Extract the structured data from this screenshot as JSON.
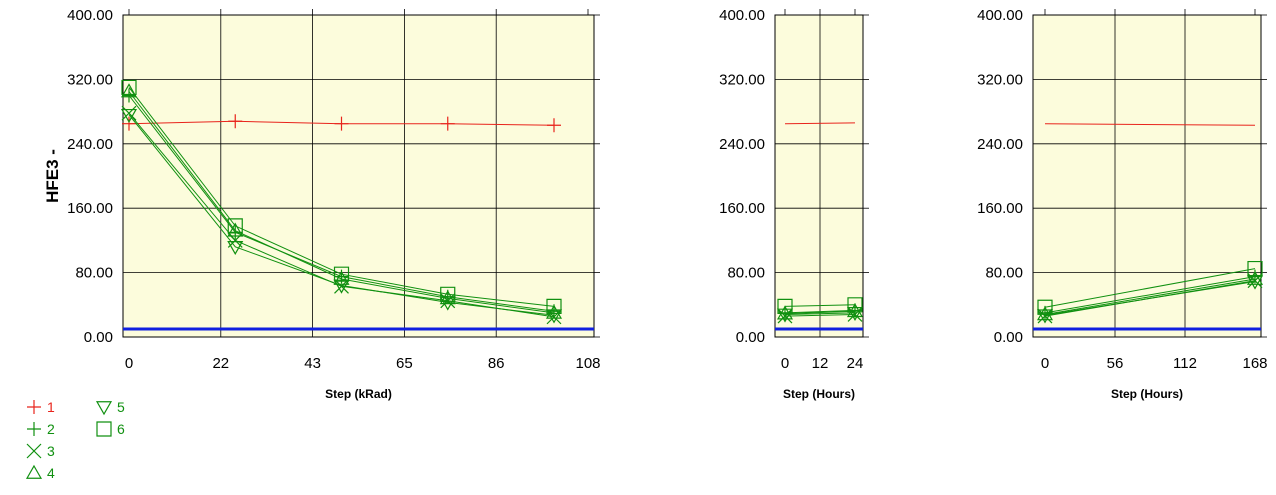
{
  "colors": {
    "plot_bg": "#fcfcdc",
    "grid": "#000000",
    "red_series": "#e8241c",
    "green_series": "#109010",
    "limit_line": "#1020e0"
  },
  "chart_data": [
    {
      "id": "panel-krad",
      "type": "line",
      "ylabel": "HFE3 -",
      "xlabel": "Step (kRad)",
      "x_ticks": [
        "0",
        "22",
        "43",
        "65",
        "86",
        "108"
      ],
      "y_ticks": [
        "0.00",
        "80.00",
        "160.00",
        "240.00",
        "320.00",
        "400.00"
      ],
      "xlim": [
        0,
        108
      ],
      "ylim": [
        0,
        400
      ],
      "grid": true,
      "limit_line": 10,
      "x": [
        0,
        25,
        50,
        75,
        100
      ],
      "series": [
        {
          "name": "1",
          "marker": "plus",
          "color": "#e8241c",
          "values": [
            265,
            268,
            265,
            265,
            263
          ]
        },
        {
          "name": "2",
          "marker": "plus",
          "color": "#109010",
          "values": [
            300,
            130,
            75,
            50,
            32
          ]
        },
        {
          "name": "3",
          "marker": "x",
          "color": "#109010",
          "values": [
            278,
            120,
            63,
            45,
            25
          ]
        },
        {
          "name": "4",
          "marker": "triangle-up",
          "color": "#109010",
          "values": [
            305,
            132,
            72,
            48,
            30
          ]
        },
        {
          "name": "5",
          "marker": "triangle-down",
          "color": "#109010",
          "values": [
            276,
            112,
            64,
            43,
            27
          ]
        },
        {
          "name": "6",
          "marker": "square",
          "color": "#109010",
          "values": [
            310,
            138,
            78,
            53,
            38
          ]
        }
      ]
    },
    {
      "id": "panel-hours-24",
      "type": "line",
      "xlabel": "Step (Hours)",
      "x_ticks": [
        "0",
        "12",
        "24"
      ],
      "y_ticks": [
        "0.00",
        "80.00",
        "160.00",
        "240.00",
        "320.00",
        "400.00"
      ],
      "xlim": [
        0,
        24
      ],
      "ylim": [
        0,
        400
      ],
      "grid": true,
      "limit_line": 10,
      "x": [
        0,
        24
      ],
      "series": [
        {
          "name": "1",
          "marker": "none",
          "color": "#e8241c",
          "values": [
            265,
            266
          ]
        },
        {
          "name": "2",
          "marker": "plus",
          "color": "#109010",
          "values": [
            30,
            33
          ]
        },
        {
          "name": "3",
          "marker": "x",
          "color": "#109010",
          "values": [
            26,
            28
          ]
        },
        {
          "name": "4",
          "marker": "triangle-up",
          "color": "#109010",
          "values": [
            29,
            32
          ]
        },
        {
          "name": "5",
          "marker": "triangle-down",
          "color": "#109010",
          "values": [
            28,
            30
          ]
        },
        {
          "name": "6",
          "marker": "square",
          "color": "#109010",
          "values": [
            38,
            40
          ]
        }
      ]
    },
    {
      "id": "panel-hours-168",
      "type": "line",
      "xlabel": "Step (Hours)",
      "x_ticks": [
        "0",
        "56",
        "112",
        "168"
      ],
      "y_ticks": [
        "0.00",
        "80.00",
        "160.00",
        "240.00",
        "320.00",
        "400.00"
      ],
      "xlim": [
        0,
        168
      ],
      "ylim": [
        0,
        400
      ],
      "grid": true,
      "limit_line": 10,
      "x": [
        0,
        168
      ],
      "series": [
        {
          "name": "1",
          "marker": "none",
          "color": "#e8241c",
          "values": [
            265,
            263
          ]
        },
        {
          "name": "2",
          "marker": "plus",
          "color": "#109010",
          "values": [
            30,
            75
          ]
        },
        {
          "name": "3",
          "marker": "x",
          "color": "#109010",
          "values": [
            26,
            70
          ]
        },
        {
          "name": "4",
          "marker": "triangle-up",
          "color": "#109010",
          "values": [
            28,
            72
          ]
        },
        {
          "name": "5",
          "marker": "triangle-down",
          "color": "#109010",
          "values": [
            27,
            69
          ]
        },
        {
          "name": "6",
          "marker": "square",
          "color": "#109010",
          "values": [
            37,
            85
          ]
        }
      ]
    }
  ],
  "legend": {
    "placement": "bottom-left",
    "items": [
      {
        "label": "1",
        "marker": "plus",
        "color": "#e8241c"
      },
      {
        "label": "2",
        "marker": "plus",
        "color": "#109010"
      },
      {
        "label": "3",
        "marker": "x",
        "color": "#109010"
      },
      {
        "label": "4",
        "marker": "triangle-up",
        "color": "#109010"
      },
      {
        "label": "5",
        "marker": "triangle-down",
        "color": "#109010"
      },
      {
        "label": "6",
        "marker": "square",
        "color": "#109010"
      }
    ]
  }
}
